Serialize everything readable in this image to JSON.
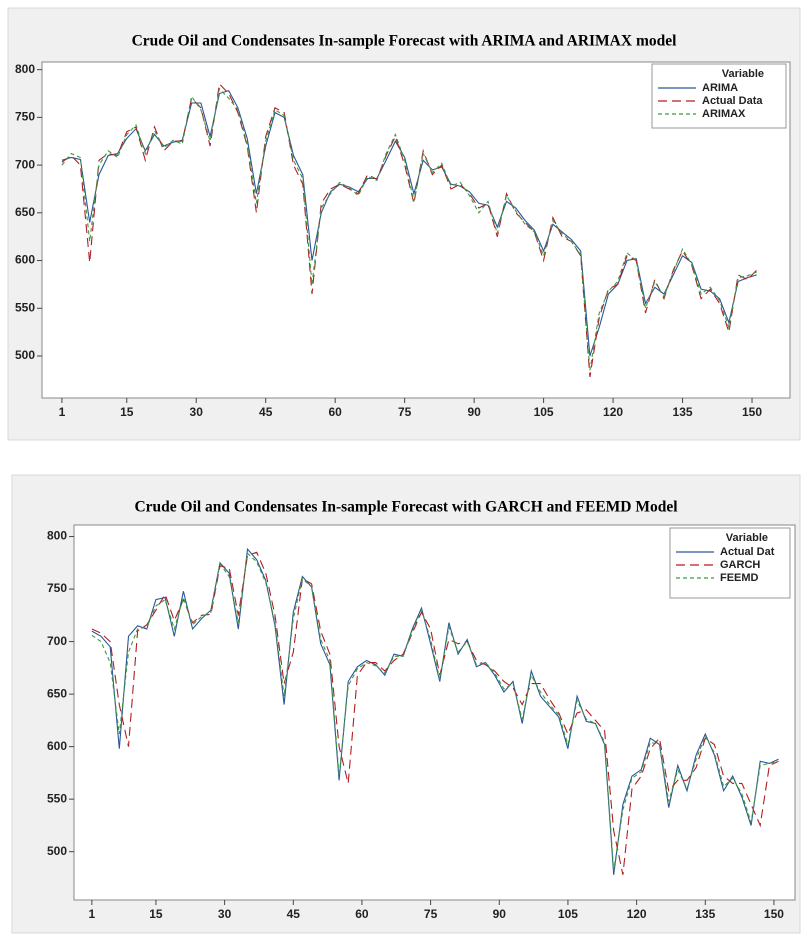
{
  "chart_data": [
    {
      "type": "line",
      "title": "Crude Oil and Condensates In-sample Forecast with ARIMA and ARIMAX model",
      "legend_title": "Variable",
      "legend": "top-right",
      "grid": false,
      "xlim": [
        -3.3,
        158.2
      ],
      "ylim": [
        456,
        808
      ],
      "xticks": [
        1,
        15,
        30,
        45,
        60,
        75,
        90,
        105,
        120,
        135,
        150
      ],
      "yticks": [
        500,
        550,
        600,
        650,
        700,
        750,
        800
      ],
      "x": [
        1,
        3,
        5,
        7,
        9,
        11,
        13,
        15,
        17,
        19,
        21,
        23,
        25,
        27,
        29,
        31,
        33,
        35,
        37,
        39,
        41,
        43,
        45,
        47,
        49,
        51,
        53,
        55,
        57,
        59,
        61,
        63,
        65,
        67,
        69,
        71,
        73,
        75,
        77,
        79,
        81,
        83,
        85,
        87,
        89,
        91,
        93,
        95,
        97,
        99,
        101,
        103,
        105,
        107,
        109,
        111,
        113,
        115,
        117,
        119,
        121,
        123,
        125,
        127,
        129,
        131,
        133,
        135,
        137,
        139,
        141,
        143,
        145,
        147,
        149,
        151
      ],
      "series": [
        {
          "name": "ARIMA",
          "color": "#2a5699",
          "line_style": "solid",
          "values": [
            705,
            708,
            706,
            640,
            690,
            710,
            712,
            728,
            738,
            715,
            732,
            720,
            724,
            726,
            765,
            765,
            730,
            775,
            778,
            760,
            728,
            670,
            720,
            755,
            750,
            710,
            690,
            600,
            650,
            672,
            680,
            677,
            672,
            686,
            686,
            705,
            725,
            708,
            670,
            705,
            695,
            698,
            680,
            678,
            672,
            660,
            658,
            635,
            662,
            655,
            642,
            632,
            610,
            638,
            630,
            622,
            610,
            500,
            530,
            565,
            575,
            600,
            602,
            555,
            572,
            565,
            585,
            605,
            598,
            570,
            568,
            560,
            535,
            578,
            582,
            585
          ]
        },
        {
          "name": "Actual Data",
          "color": "#b01e23",
          "line_style": "long-dash",
          "values": [
            703,
            710,
            700,
            598,
            705,
            712,
            710,
            735,
            740,
            705,
            740,
            715,
            725,
            725,
            770,
            760,
            720,
            785,
            775,
            755,
            720,
            650,
            730,
            760,
            755,
            700,
            680,
            565,
            660,
            675,
            680,
            675,
            670,
            690,
            685,
            710,
            730,
            700,
            660,
            715,
            690,
            700,
            675,
            680,
            670,
            655,
            660,
            625,
            670,
            650,
            640,
            630,
            600,
            645,
            625,
            620,
            605,
            478,
            540,
            570,
            575,
            605,
            600,
            545,
            580,
            560,
            590,
            610,
            595,
            560,
            570,
            555,
            525,
            585,
            580,
            590
          ]
        },
        {
          "name": "ARIMAX",
          "color": "#3c9a3c",
          "line_style": "short-dash",
          "values": [
            700,
            712,
            708,
            620,
            700,
            715,
            708,
            732,
            742,
            712,
            736,
            718,
            726,
            722,
            772,
            758,
            725,
            780,
            770,
            758,
            722,
            660,
            725,
            758,
            752,
            705,
            686,
            575,
            655,
            670,
            682,
            676,
            668,
            688,
            684,
            712,
            732,
            705,
            662,
            712,
            692,
            702,
            678,
            682,
            668,
            650,
            662,
            628,
            668,
            652,
            638,
            630,
            605,
            642,
            628,
            620,
            606,
            485,
            545,
            568,
            578,
            608,
            600,
            550,
            578,
            562,
            588,
            612,
            596,
            565,
            572,
            558,
            530,
            582,
            584,
            588
          ]
        }
      ]
    },
    {
      "type": "line",
      "title": "Crude Oil and Condensates In-sample Forecast with GARCH and FEEMD Model",
      "legend_title": "Variable",
      "legend": "top-right",
      "grid": false,
      "xlim": [
        -2.9,
        154.6
      ],
      "ylim": [
        454,
        811
      ],
      "xticks": [
        1,
        15,
        30,
        45,
        60,
        75,
        90,
        105,
        120,
        135,
        150
      ],
      "yticks": [
        500,
        550,
        600,
        650,
        700,
        750,
        800
      ],
      "x": [
        1,
        3,
        5,
        7,
        9,
        11,
        13,
        15,
        17,
        19,
        21,
        23,
        25,
        27,
        29,
        31,
        33,
        35,
        37,
        39,
        41,
        43,
        45,
        47,
        49,
        51,
        53,
        55,
        57,
        59,
        61,
        63,
        65,
        67,
        69,
        71,
        73,
        75,
        77,
        79,
        81,
        83,
        85,
        87,
        89,
        91,
        93,
        95,
        97,
        99,
        101,
        103,
        105,
        107,
        109,
        111,
        113,
        115,
        117,
        119,
        121,
        123,
        125,
        127,
        129,
        131,
        133,
        135,
        137,
        139,
        141,
        143,
        145,
        147,
        149,
        151
      ],
      "series": [
        {
          "name": "Actual Dat",
          "color": "#2a5699",
          "line_style": "solid",
          "values": [
            710,
            705,
            695,
            598,
            705,
            715,
            712,
            740,
            742,
            705,
            748,
            712,
            722,
            730,
            775,
            765,
            712,
            788,
            778,
            758,
            715,
            640,
            728,
            762,
            752,
            698,
            678,
            568,
            662,
            676,
            682,
            678,
            668,
            688,
            686,
            712,
            732,
            698,
            662,
            718,
            688,
            702,
            676,
            680,
            668,
            652,
            662,
            622,
            672,
            648,
            638,
            628,
            598,
            648,
            624,
            622,
            602,
            478,
            545,
            572,
            578,
            608,
            602,
            542,
            582,
            558,
            592,
            612,
            592,
            558,
            572,
            552,
            525,
            586,
            584,
            588
          ]
        },
        {
          "name": "GARCH",
          "color": "#b01e23",
          "line_style": "long-dash",
          "values": [
            712,
            708,
            700,
            640,
            600,
            710,
            716,
            730,
            745,
            720,
            740,
            718,
            725,
            726,
            772,
            770,
            725,
            782,
            785,
            765,
            725,
            660,
            690,
            760,
            755,
            710,
            688,
            600,
            565,
            668,
            680,
            680,
            672,
            682,
            688,
            708,
            728,
            712,
            668,
            702,
            698,
            700,
            682,
            678,
            672,
            662,
            656,
            640,
            660,
            660,
            645,
            632,
            612,
            632,
            635,
            625,
            615,
            520,
            478,
            560,
            572,
            598,
            608,
            558,
            568,
            568,
            580,
            608,
            602,
            572,
            565,
            565,
            545,
            525,
            582,
            586
          ]
        },
        {
          "name": "FEEMD",
          "color": "#3c9a3c",
          "line_style": "short-dash",
          "values": [
            706,
            700,
            680,
            612,
            690,
            712,
            714,
            734,
            740,
            712,
            742,
            716,
            724,
            728,
            774,
            762,
            718,
            784,
            776,
            756,
            718,
            648,
            722,
            760,
            752,
            702,
            682,
            572,
            658,
            674,
            680,
            677,
            670,
            686,
            686,
            710,
            730,
            702,
            664,
            714,
            690,
            700,
            678,
            680,
            670,
            655,
            660,
            626,
            668,
            652,
            640,
            630,
            602,
            644,
            626,
            622,
            604,
            482,
            540,
            570,
            576,
            604,
            602,
            548,
            578,
            560,
            588,
            610,
            594,
            562,
            570,
            555,
            528,
            582,
            584,
            586
          ]
        }
      ]
    }
  ]
}
